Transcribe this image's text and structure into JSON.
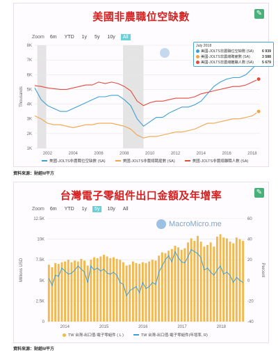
{
  "chart_data": [
    {
      "type": "line",
      "title": "美國非農職位空缺數",
      "ylabel": "Thousands",
      "ylim": [
        1000,
        8000
      ],
      "yticks": [
        "1K",
        "2K",
        "3K",
        "4K",
        "5K",
        "6K",
        "7K",
        "8K"
      ],
      "xticks": [
        "2002",
        "2004",
        "2006",
        "2008",
        "2010",
        "2012",
        "2014",
        "2016",
        "2018"
      ],
      "x_range": [
        2001.0,
        2018.6
      ],
      "shaded_ranges": [
        [
          2001.2,
          2001.9
        ],
        [
          2007.9,
          2009.5
        ]
      ],
      "grid": true,
      "legend_position": "bottom",
      "zoom": {
        "label": "Zoom",
        "buttons": [
          "6m",
          "YTD",
          "1y",
          "5y",
          "10y",
          "All"
        ],
        "active": "All"
      },
      "series": [
        {
          "name": "美國-JOLTS非農職位空缺數 (SA)",
          "color": "#3b9fd6",
          "x": [
            2001.0,
            2001.5,
            2002.0,
            2002.5,
            2003.0,
            2003.5,
            2004.0,
            2004.5,
            2005.0,
            2005.5,
            2006.0,
            2006.5,
            2007.0,
            2007.5,
            2008.0,
            2008.5,
            2009.0,
            2009.5,
            2010.0,
            2010.5,
            2011.0,
            2011.5,
            2012.0,
            2012.5,
            2013.0,
            2013.5,
            2014.0,
            2014.5,
            2015.0,
            2015.5,
            2016.0,
            2016.5,
            2017.0,
            2017.5,
            2018.0,
            2018.5
          ],
          "y": [
            5100,
            4300,
            3900,
            3700,
            3500,
            3500,
            3700,
            3900,
            4100,
            4300,
            4500,
            4500,
            4600,
            4600,
            4300,
            3900,
            3000,
            2500,
            2800,
            3100,
            3100,
            3400,
            3600,
            3800,
            3800,
            3950,
            4200,
            4700,
            5200,
            5500,
            5700,
            5800,
            5800,
            6000,
            6400,
            6900
          ]
        },
        {
          "name": "美國-JOLTS非農總聘雇數 (SA)",
          "color": "#f0a448",
          "x": [
            2001.0,
            2001.5,
            2002.0,
            2002.5,
            2003.0,
            2003.5,
            2004.0,
            2004.5,
            2005.0,
            2005.5,
            2006.0,
            2006.5,
            2007.0,
            2007.5,
            2008.0,
            2008.5,
            2009.0,
            2009.5,
            2010.0,
            2010.5,
            2011.0,
            2011.5,
            2012.0,
            2012.5,
            2013.0,
            2013.5,
            2014.0,
            2014.5,
            2015.0,
            2015.5,
            2016.0,
            2016.5,
            2017.0,
            2017.5,
            2018.0,
            2018.5
          ],
          "y": [
            3200,
            3000,
            2700,
            2600,
            2600,
            2500,
            2400,
            2500,
            2600,
            2600,
            2700,
            2700,
            2700,
            2600,
            2500,
            2300,
            1900,
            1700,
            1800,
            1800,
            1900,
            2000,
            2100,
            2100,
            2200,
            2300,
            2500,
            2700,
            2700,
            2800,
            2900,
            3000,
            3000,
            3100,
            3200,
            3500
          ]
        },
        {
          "name": "美國-JOLTS非農總離職人數 (SA)",
          "color": "#e34a3c",
          "x": [
            2001.0,
            2001.5,
            2002.0,
            2002.5,
            2003.0,
            2003.5,
            2004.0,
            2004.5,
            2005.0,
            2005.5,
            2006.0,
            2006.5,
            2007.0,
            2007.5,
            2008.0,
            2008.5,
            2009.0,
            2009.5,
            2010.0,
            2010.5,
            2011.0,
            2011.5,
            2012.0,
            2012.5,
            2013.0,
            2013.5,
            2014.0,
            2014.5,
            2015.0,
            2015.5,
            2016.0,
            2016.5,
            2017.0,
            2017.5,
            2018.0,
            2018.5
          ],
          "y": [
            5250,
            5200,
            5100,
            5050,
            5000,
            5000,
            5100,
            5200,
            5300,
            5300,
            5500,
            5400,
            5500,
            5400,
            5200,
            4900,
            4200,
            3900,
            4100,
            4200,
            4200,
            4300,
            4400,
            4400,
            4400,
            4500,
            4700,
            4800,
            4900,
            5000,
            5100,
            5200,
            5200,
            5300,
            5500,
            5700
          ]
        }
      ],
      "tooltip": {
        "title": "July 2018",
        "rows": [
          {
            "label": "美國-JOLTS非農職位空缺數 (SA)",
            "value": "6 939",
            "color": "#3b9fd6"
          },
          {
            "label": "美國-JOLTS非農總聘雇數 (SA)",
            "value": "3 588",
            "color": "#f0a448"
          },
          {
            "label": "美國-JOLTS非農總離職人數 (SA)",
            "value": "5 679",
            "color": "#e34a3c"
          }
        ]
      }
    },
    {
      "type": "bar",
      "title": "台灣電子零組件出口金額及年增率",
      "ylabel": "Millions USD",
      "y2label": "Percent",
      "ylim": [
        0,
        12500
      ],
      "y2lim": [
        -40,
        60
      ],
      "yticks": [
        "0",
        "2.5K",
        "5K",
        "7.5K",
        "10K",
        "12.5K"
      ],
      "y2ticks": [
        "-40",
        "-20",
        "0",
        "20",
        "40",
        "60"
      ],
      "xticks": [
        "2014",
        "2015",
        "2016",
        "2017",
        "2018"
      ],
      "x_range": [
        2013.55,
        2018.6
      ],
      "grid": true,
      "legend_position": "bottom",
      "zoom": {
        "label": "Zoom",
        "buttons": [
          "6m",
          "YTD",
          "1y",
          "5y",
          "10y",
          "All"
        ],
        "active": "5y"
      },
      "watermark": "MacroMicro.me",
      "bar_series": {
        "name": "TW 台灣-出口值-電子零組件 ( L )",
        "color": "#f2b84a",
        "values": [
          6900,
          6600,
          7100,
          7000,
          7200,
          7300,
          7500,
          7200,
          7400,
          7300,
          7600,
          7400,
          6800,
          7500,
          7800,
          7700,
          7900,
          8100,
          7900,
          7700,
          7800,
          7600,
          7500,
          7200,
          6800,
          6900,
          7300,
          7100,
          7000,
          7200,
          7100,
          7300,
          7500,
          7400,
          8000,
          8400,
          8300,
          8600,
          8800,
          9200,
          9000,
          8700,
          8900,
          9600,
          10100,
          9800,
          10400,
          9700,
          9100,
          9300,
          9600,
          9100,
          10300,
          10600,
          10200,
          10100,
          9700,
          9500,
          10200,
          10000,
          9800
        ]
      },
      "line_series": {
        "name": "TW 台灣-出口值-電子零組件(年增率, R)",
        "color": "#3b9fd6",
        "values": [
          2,
          -5,
          5,
          4,
          12,
          9,
          6,
          7,
          10,
          14,
          11,
          8,
          -2,
          14,
          10,
          12,
          9,
          11,
          7,
          6,
          8,
          5,
          -2,
          -4,
          -15,
          -10,
          -8,
          -6,
          -12,
          -2,
          -8,
          -6,
          -2,
          -4,
          8,
          14,
          20,
          24,
          18,
          28,
          22,
          18,
          17,
          23,
          30,
          28,
          26,
          22,
          10,
          12,
          8,
          5,
          10,
          14,
          6,
          8,
          5,
          -2,
          3,
          0,
          -2
        ]
      }
    }
  ],
  "source_text": "資料來源：財經M平方",
  "footer_note": "資料來源：財經M平方"
}
